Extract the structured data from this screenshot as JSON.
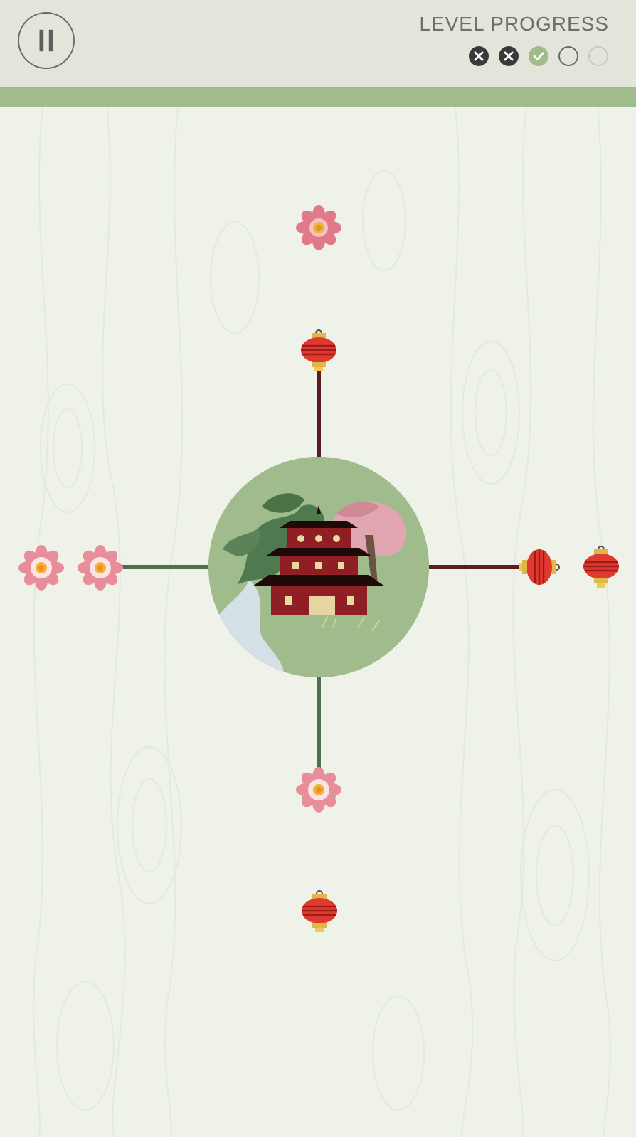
{
  "header": {
    "pause_icon": "pause-icon",
    "progress_title": "LEVEL PROGRESS",
    "progress": [
      {
        "state": "failed",
        "icon": "x-icon"
      },
      {
        "state": "failed",
        "icon": "x-icon"
      },
      {
        "state": "passed",
        "icon": "check-icon"
      },
      {
        "state": "current",
        "icon": "ring-icon"
      },
      {
        "state": "locked",
        "icon": "ring-icon"
      }
    ]
  },
  "colors": {
    "accent_green": "#a1bc8c",
    "path_green": "#4f6f4d",
    "path_red": "#5b1d1d",
    "lantern_red": "#e03a2e",
    "flower_pink": "#e07a8a",
    "background": "#eef2e8"
  },
  "board": {
    "center_icon": "pagoda-garden-icon",
    "pieces": [
      {
        "name": "lotus-flower-top",
        "icon": "lotus-flower-icon"
      },
      {
        "name": "lantern-top-attached",
        "icon": "red-lantern-icon"
      },
      {
        "name": "lotus-flower-left-outer",
        "icon": "lotus-flower-icon"
      },
      {
        "name": "lotus-flower-left-attached",
        "icon": "lotus-flower-icon"
      },
      {
        "name": "lantern-right-attached",
        "icon": "red-lantern-icon"
      },
      {
        "name": "lantern-right-outer",
        "icon": "red-lantern-icon"
      },
      {
        "name": "lotus-flower-bottom-attached",
        "icon": "lotus-flower-icon"
      },
      {
        "name": "lantern-bottom",
        "icon": "red-lantern-icon"
      }
    ]
  }
}
